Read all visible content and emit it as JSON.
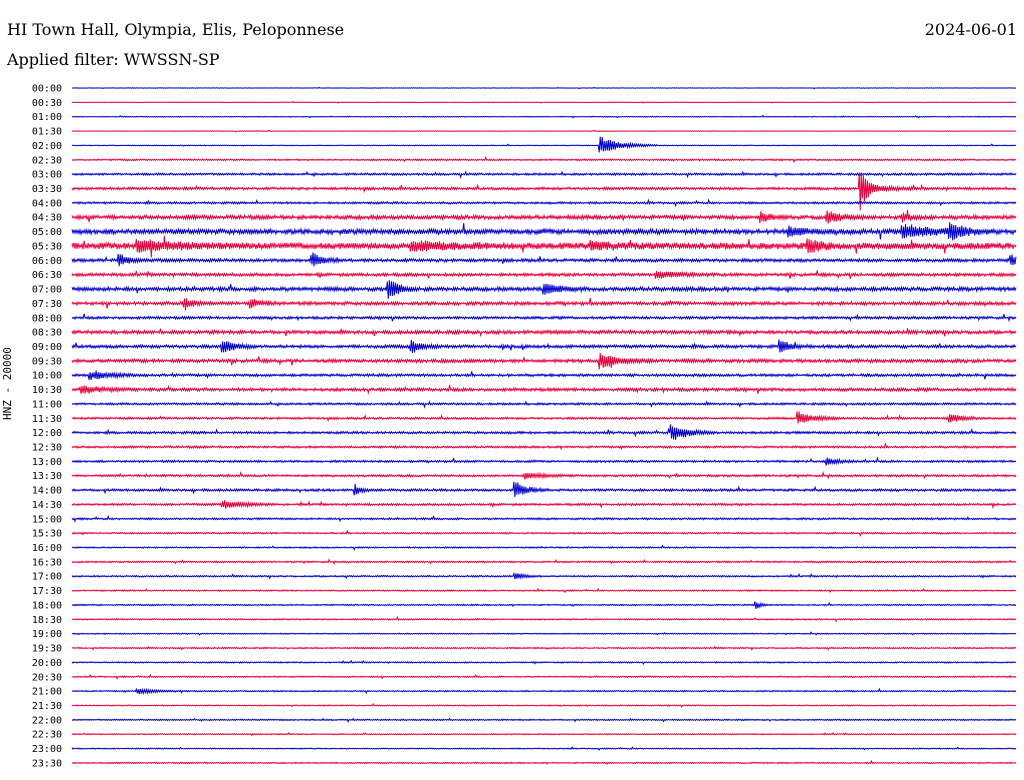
{
  "header": {
    "station": "HI Town Hall, Olympia, Elis, Peloponnese",
    "date": "2024-06-01",
    "filter": "Applied filter: WWSSN-SP"
  },
  "colors": {
    "odd": "#0000cc",
    "even": "#e8003c"
  },
  "chart_data": {
    "type": "line",
    "title": "HI Town Hall, Olympia, Elis, Peloponnese",
    "ylabel": "HNZ - 20000",
    "xlabel": "",
    "rows": [
      "00:00",
      "00:30",
      "01:00",
      "01:30",
      "02:00",
      "02:30",
      "03:00",
      "03:30",
      "04:00",
      "04:30",
      "05:00",
      "05:30",
      "06:00",
      "06:30",
      "07:00",
      "07:30",
      "08:00",
      "08:30",
      "09:00",
      "09:30",
      "10:00",
      "10:30",
      "11:00",
      "11:30",
      "12:00",
      "12:30",
      "13:00",
      "13:30",
      "14:00",
      "14:30",
      "15:00",
      "15:30",
      "16:00",
      "16:30",
      "17:00",
      "17:30",
      "18:00",
      "18:30",
      "19:00",
      "19:30",
      "20:00",
      "20:30",
      "21:00",
      "21:30",
      "22:00",
      "22:30",
      "23:00",
      "23:30"
    ],
    "noise": [
      0.2,
      0.2,
      0.3,
      0.2,
      0.3,
      0.6,
      0.8,
      1.0,
      0.8,
      1.5,
      2.0,
      2.5,
      1.2,
      1.2,
      1.5,
      1.3,
      1.0,
      1.3,
      1.2,
      1.3,
      1.0,
      1.2,
      0.8,
      0.8,
      0.9,
      0.8,
      0.8,
      0.8,
      0.9,
      0.8,
      0.7,
      0.6,
      0.5,
      0.6,
      0.6,
      0.5,
      0.5,
      0.5,
      0.4,
      0.5,
      0.5,
      0.5,
      0.5,
      0.4,
      0.5,
      0.4,
      0.4,
      0.5
    ],
    "events": [
      {
        "row": 4,
        "t": 0.56,
        "amp": 9,
        "dur": 0.02
      },
      {
        "row": 7,
        "t": 0.835,
        "amp": 22,
        "dur": 0.005
      },
      {
        "row": 7,
        "t": 0.84,
        "amp": 5,
        "dur": 0.02
      },
      {
        "row": 9,
        "t": 0.73,
        "amp": 5,
        "dur": 0.01
      },
      {
        "row": 9,
        "t": 0.8,
        "amp": 6,
        "dur": 0.015
      },
      {
        "row": 9,
        "t": 0.88,
        "amp": 4,
        "dur": 0.01
      },
      {
        "row": 10,
        "t": 0.76,
        "amp": 5,
        "dur": 0.015
      },
      {
        "row": 10,
        "t": 0.88,
        "amp": 6,
        "dur": 0.03
      },
      {
        "row": 10,
        "t": 0.93,
        "amp": 8,
        "dur": 0.015
      },
      {
        "row": 11,
        "t": 0.07,
        "amp": 5,
        "dur": 0.04
      },
      {
        "row": 11,
        "t": 0.36,
        "amp": 4,
        "dur": 0.04
      },
      {
        "row": 11,
        "t": 0.55,
        "amp": 4,
        "dur": 0.02
      },
      {
        "row": 11,
        "t": 0.78,
        "amp": 7,
        "dur": 0.012
      },
      {
        "row": 12,
        "t": 0.05,
        "amp": 6,
        "dur": 0.01
      },
      {
        "row": 12,
        "t": 0.255,
        "amp": 7,
        "dur": 0.01
      },
      {
        "row": 12,
        "t": 0.995,
        "amp": 5,
        "dur": 0.01
      },
      {
        "row": 13,
        "t": 0.62,
        "amp": 4,
        "dur": 0.02
      },
      {
        "row": 14,
        "t": 0.335,
        "amp": 12,
        "dur": 0.01
      },
      {
        "row": 14,
        "t": 0.5,
        "amp": 6,
        "dur": 0.015
      },
      {
        "row": 15,
        "t": 0.12,
        "amp": 5,
        "dur": 0.01
      },
      {
        "row": 15,
        "t": 0.19,
        "amp": 4,
        "dur": 0.01
      },
      {
        "row": 18,
        "t": 0.16,
        "amp": 7,
        "dur": 0.012
      },
      {
        "row": 18,
        "t": 0.36,
        "amp": 7,
        "dur": 0.01
      },
      {
        "row": 18,
        "t": 0.75,
        "amp": 6,
        "dur": 0.012
      },
      {
        "row": 19,
        "t": 0.56,
        "amp": 7,
        "dur": 0.02
      },
      {
        "row": 20,
        "t": 0.02,
        "amp": 4,
        "dur": 0.02
      },
      {
        "row": 21,
        "t": 0.01,
        "amp": 4,
        "dur": 0.02
      },
      {
        "row": 23,
        "t": 0.77,
        "amp": 7,
        "dur": 0.015
      },
      {
        "row": 23,
        "t": 0.93,
        "amp": 5,
        "dur": 0.012
      },
      {
        "row": 24,
        "t": 0.635,
        "amp": 9,
        "dur": 0.015
      },
      {
        "row": 26,
        "t": 0.8,
        "amp": 4,
        "dur": 0.01
      },
      {
        "row": 27,
        "t": 0.48,
        "amp": 3,
        "dur": 0.02
      },
      {
        "row": 28,
        "t": 0.3,
        "amp": 6,
        "dur": 0.005
      },
      {
        "row": 28,
        "t": 0.47,
        "amp": 8,
        "dur": 0.012
      },
      {
        "row": 29,
        "t": 0.16,
        "amp": 4,
        "dur": 0.02
      },
      {
        "row": 34,
        "t": 0.47,
        "amp": 3,
        "dur": 0.01
      },
      {
        "row": 36,
        "t": 0.725,
        "amp": 4,
        "dur": 0.005
      },
      {
        "row": 42,
        "t": 0.07,
        "amp": 3,
        "dur": 0.015
      }
    ]
  }
}
